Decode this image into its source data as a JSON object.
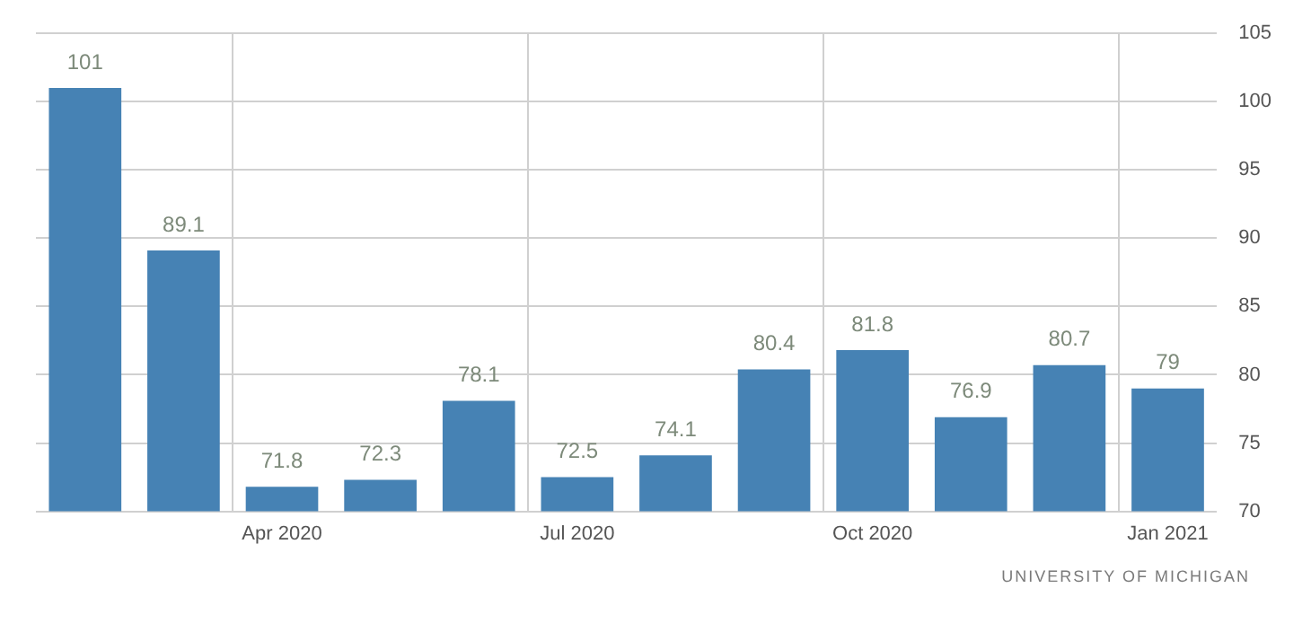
{
  "chart_data": {
    "type": "bar",
    "categories": [
      null,
      null,
      "Apr 2020",
      null,
      null,
      "Jul 2020",
      null,
      null,
      "Oct 2020",
      null,
      null,
      "Jan 2021"
    ],
    "values": [
      101,
      89.1,
      71.8,
      72.3,
      78.1,
      72.5,
      74.1,
      80.4,
      81.8,
      76.9,
      80.7,
      79
    ],
    "color": "#4682b4",
    "ylim": [
      70,
      105
    ],
    "yticks": [
      70,
      75,
      80,
      85,
      90,
      95,
      100,
      105
    ],
    "grid": true,
    "data_labels": true,
    "annotations": [
      "UNIVERSITY OF MICHIGAN"
    ]
  }
}
